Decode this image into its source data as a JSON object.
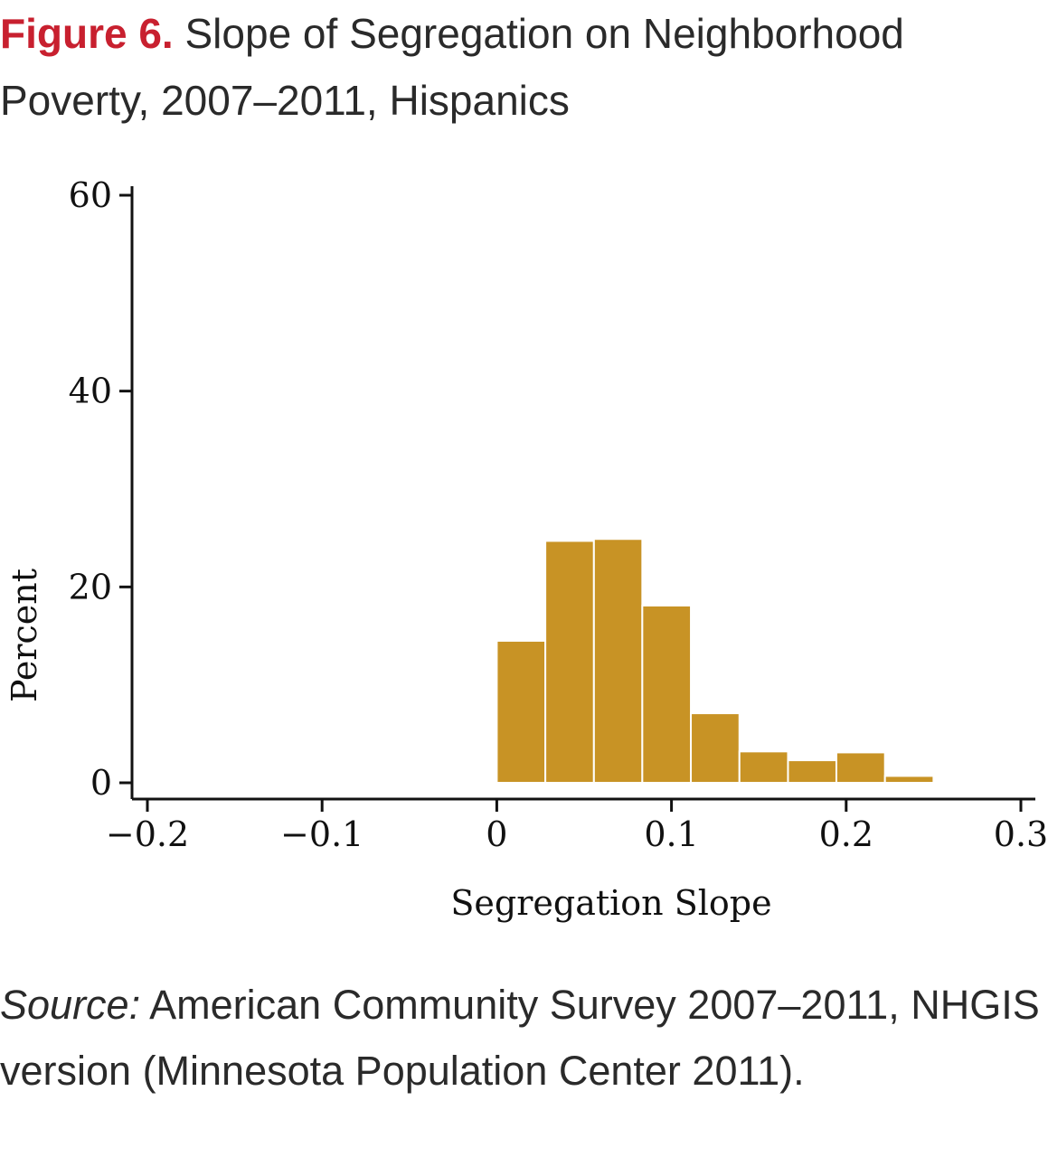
{
  "figure": {
    "label": "Figure 6.",
    "title": "Slope of Segregation on Neighborhood Poverty, 2007–2011, Hispanics"
  },
  "source": {
    "label": "Source:",
    "text": "American Community Survey 2007–2011, NHGIS version (Minnesota Population Center 2011)."
  },
  "colors": {
    "bar": "#c89325",
    "bar_edge": "#ffffff",
    "figure_label": "#c8202f",
    "axis": "#111111"
  },
  "chart_data": {
    "type": "bar",
    "xlabel": "Segregation Slope",
    "ylabel": "Percent",
    "xlim": [
      -0.2,
      0.3
    ],
    "ylim": [
      0,
      60
    ],
    "xticks": [
      -0.2,
      -0.1,
      0,
      0.1,
      0.2,
      0.3
    ],
    "xtick_labels": [
      "−0.2",
      "−0.1",
      "0",
      "0.1",
      "0.2",
      "0.3"
    ],
    "yticks": [
      0,
      20,
      40,
      60
    ],
    "ytick_labels": [
      "0",
      "20",
      "40",
      "60"
    ],
    "bin_width": 0.0278,
    "bins": [
      {
        "x0": 0.0,
        "x1": 0.0278,
        "value": 14.5
      },
      {
        "x0": 0.0278,
        "x1": 0.0556,
        "value": 24.7
      },
      {
        "x0": 0.0556,
        "x1": 0.0833,
        "value": 24.9
      },
      {
        "x0": 0.0833,
        "x1": 0.1111,
        "value": 18.1
      },
      {
        "x0": 0.1111,
        "x1": 0.1389,
        "value": 7.1
      },
      {
        "x0": 0.1389,
        "x1": 0.1667,
        "value": 3.2
      },
      {
        "x0": 0.1667,
        "x1": 0.1944,
        "value": 2.3
      },
      {
        "x0": 0.1944,
        "x1": 0.2222,
        "value": 3.1
      },
      {
        "x0": 0.2222,
        "x1": 0.25,
        "value": 0.7
      }
    ],
    "grid": false,
    "legend": "none"
  }
}
